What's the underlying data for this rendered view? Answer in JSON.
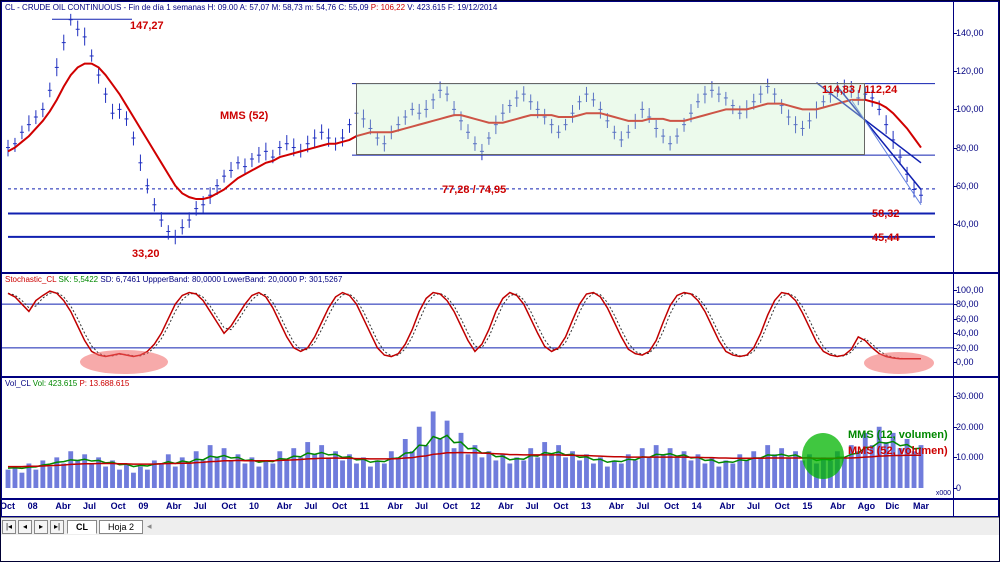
{
  "header": {
    "main": "CL - CRUDE OIL CONTINUOUS - Fin de día 1 semanas  H: 09.00  A: 57,07  M: 58,73  m: 54,76  C: 55,09",
    "p": "P: 106,22",
    "v": "V: 423.615",
    "f": "F: 19/12/2014"
  },
  "stoch_header": {
    "label": "Stochastic_CL",
    "sk": "SK: 5,5422",
    "sd": "SD: 6,7461  UppperBand: 80,0000  LowerBand: 20,0000  P: 301,5267"
  },
  "vol_header": {
    "label": "Vol_CL",
    "vol": "Vol: 423.615",
    "p": "P: 13.688.615"
  },
  "annotations": {
    "peak": "147,27",
    "mms52": "MMS (52)",
    "upper_range": "114,83 / 112,24",
    "lower_range": "77,28 / 74,95",
    "current": "58,32",
    "support": "45,44",
    "bottom": "33,20",
    "mms12v": "MMS (12, volumen)",
    "mms52v": "MMS (52, volumen)",
    "x000": "x000"
  },
  "price_axis": {
    "ticks": [
      140,
      120,
      100,
      80,
      60,
      40
    ],
    "labels": [
      "140,00",
      "120,00",
      "100,00",
      "80,00",
      "60,00",
      "40,00"
    ],
    "min": 20,
    "max": 150
  },
  "stoch_axis": {
    "ticks": [
      100,
      80,
      60,
      40,
      20,
      0
    ],
    "labels": [
      "100,00",
      "80,00",
      "60,00",
      "40,00",
      "20,00",
      "0,00"
    ],
    "min": -5,
    "max": 105
  },
  "vol_axis": {
    "ticks": [
      30000,
      20000,
      10000,
      0
    ],
    "labels": [
      "30.000",
      "20.000",
      "10.000",
      "0"
    ],
    "min": 0,
    "max": 32000
  },
  "xaxis": {
    "labels": [
      "Oct",
      "08",
      "Abr",
      "Jul",
      "Oct",
      "09",
      "Abr",
      "Jul",
      "Oct",
      "10",
      "Abr",
      "Jul",
      "Oct",
      "11",
      "Abr",
      "Jul",
      "Oct",
      "12",
      "Abr",
      "Jul",
      "Oct",
      "13",
      "Abr",
      "Jul",
      "Oct",
      "14",
      "Abr",
      "Jul",
      "Oct",
      "15",
      "Abr",
      "Ago",
      "Dic",
      "Mar"
    ]
  },
  "tabs": {
    "tab1": "CL",
    "tab2": "Hoja 2"
  },
  "colors": {
    "price_bars": "#2030c0",
    "mms_line": "#d00000",
    "axis_text": "#000080",
    "header_red": "#cc0000",
    "stoch_line": "#c00000",
    "stoch_dash": "#333333",
    "vol_bars": "#4050d0",
    "vol_mms12": "#008800",
    "vol_mms52": "#c00000",
    "hline_blue": "#1020b0",
    "rect_border": "#555555",
    "rect_fill": "#d8f0d0"
  },
  "price_series": [
    80,
    82,
    88,
    92,
    96,
    100,
    110,
    122,
    135,
    147,
    142,
    138,
    128,
    118,
    108,
    98,
    100,
    95,
    85,
    72,
    60,
    50,
    42,
    36,
    33,
    38,
    42,
    48,
    50,
    55,
    60,
    65,
    68,
    72,
    70,
    74,
    76,
    78,
    75,
    80,
    82,
    80,
    78,
    82,
    85,
    88,
    85,
    82,
    85,
    92,
    98,
    95,
    90,
    85,
    82,
    88,
    92,
    96,
    100,
    98,
    100,
    105,
    110,
    108,
    100,
    94,
    88,
    82,
    78,
    85,
    92,
    98,
    102,
    106,
    108,
    104,
    100,
    96,
    92,
    88,
    92,
    98,
    104,
    108,
    105,
    100,
    94,
    88,
    84,
    88,
    94,
    100,
    96,
    90,
    86,
    82,
    86,
    92,
    98,
    104,
    108,
    110,
    108,
    106,
    102,
    98,
    100,
    104,
    108,
    112,
    108,
    102,
    96,
    92,
    90,
    94,
    100,
    104,
    108,
    110,
    112,
    110,
    106,
    108,
    106,
    100,
    92,
    84,
    75,
    66,
    58,
    55
  ],
  "mms52_series": [
    78,
    80,
    83,
    86,
    90,
    94,
    99,
    105,
    112,
    118,
    122,
    124,
    124,
    122,
    118,
    113,
    108,
    102,
    96,
    90,
    84,
    78,
    72,
    66,
    60,
    56,
    54,
    53,
    53,
    54,
    56,
    58,
    61,
    64,
    66,
    68,
    70,
    72,
    73,
    75,
    76,
    77,
    78,
    79,
    80,
    81,
    82,
    82,
    83,
    84,
    86,
    87,
    88,
    88,
    88,
    88,
    89,
    90,
    91,
    92,
    93,
    94,
    95,
    96,
    97,
    97,
    96,
    95,
    94,
    93,
    93,
    93,
    94,
    95,
    96,
    97,
    97,
    97,
    97,
    96,
    96,
    96,
    97,
    98,
    98,
    98,
    97,
    96,
    95,
    94,
    94,
    94,
    95,
    95,
    95,
    94,
    94,
    94,
    95,
    96,
    97,
    98,
    99,
    100,
    100,
    100,
    100,
    101,
    102,
    103,
    103,
    103,
    102,
    101,
    100,
    100,
    100,
    101,
    102,
    103,
    104,
    105,
    105,
    105,
    104,
    103,
    101,
    98,
    94,
    90,
    85,
    80
  ],
  "stoch_series": [
    95,
    90,
    80,
    70,
    85,
    92,
    98,
    95,
    85,
    70,
    50,
    30,
    15,
    10,
    8,
    10,
    12,
    10,
    8,
    10,
    15,
    25,
    40,
    60,
    80,
    92,
    96,
    94,
    85,
    70,
    55,
    40,
    50,
    65,
    80,
    92,
    96,
    90,
    75,
    55,
    35,
    20,
    15,
    20,
    35,
    55,
    75,
    90,
    96,
    92,
    80,
    60,
    40,
    20,
    10,
    8,
    12,
    25,
    45,
    70,
    88,
    96,
    94,
    85,
    70,
    50,
    30,
    15,
    25,
    45,
    70,
    88,
    96,
    92,
    80,
    60,
    40,
    22,
    15,
    20,
    35,
    58,
    80,
    94,
    96,
    90,
    75,
    55,
    35,
    18,
    12,
    10,
    15,
    30,
    55,
    78,
    92,
    96,
    94,
    85,
    70,
    50,
    30,
    15,
    10,
    8,
    10,
    20,
    40,
    65,
    85,
    96,
    94,
    85,
    68,
    48,
    28,
    15,
    10,
    8,
    10,
    18,
    35,
    30,
    20,
    12,
    8,
    6,
    5,
    5,
    5,
    5
  ],
  "vol_series": [
    6,
    7,
    5,
    8,
    6,
    9,
    7,
    10,
    8,
    12,
    9,
    11,
    8,
    10,
    7,
    9,
    6,
    8,
    5,
    7,
    6,
    9,
    8,
    11,
    7,
    10,
    8,
    12,
    9,
    14,
    10,
    13,
    9,
    11,
    8,
    10,
    7,
    9,
    8,
    12,
    9,
    13,
    10,
    15,
    11,
    14,
    10,
    12,
    9,
    11,
    8,
    10,
    7,
    9,
    8,
    12,
    10,
    16,
    12,
    20,
    14,
    25,
    16,
    22,
    13,
    18,
    11,
    14,
    10,
    12,
    9,
    11,
    8,
    10,
    9,
    13,
    10,
    15,
    11,
    14,
    10,
    12,
    9,
    11,
    8,
    10,
    7,
    9,
    8,
    11,
    9,
    13,
    10,
    14,
    11,
    13,
    10,
    12,
    9,
    11,
    8,
    10,
    7,
    9,
    8,
    11,
    9,
    12,
    10,
    14,
    11,
    13,
    10,
    12,
    9,
    11,
    8,
    10,
    9,
    12,
    10,
    14,
    12,
    18,
    14,
    20,
    15,
    18,
    13,
    16,
    12,
    14
  ],
  "vol_mms12": [
    6.5,
    6.6,
    6.4,
    6.8,
    6.9,
    7.5,
    7.8,
    8.4,
    8.6,
    9.2,
    9.0,
    9.4,
    8.8,
    9.0,
    8.2,
    8.4,
    7.6,
    7.8,
    7.0,
    7.4,
    7.2,
    7.8,
    7.9,
    8.6,
    8.0,
    8.8,
    8.4,
    9.4,
    9.2,
    10.4,
    10.0,
    10.6,
    9.8,
    10.0,
    9.0,
    9.2,
    8.4,
    8.8,
    8.6,
    9.6,
    9.4,
    10.4,
    10.2,
    11.4,
    11.0,
    11.6,
    10.8,
    11.0,
    10.0,
    10.2,
    9.2,
    9.4,
    8.4,
    8.8,
    8.6,
    9.6,
    9.8,
    11.4,
    11.6,
    14.0,
    13.8,
    16.8,
    16.0,
    17.2,
    14.8,
    15.0,
    12.8,
    13.0,
    11.4,
    11.6,
    10.2,
    10.4,
    9.2,
    9.6,
    9.4,
    10.6,
    10.4,
    11.6,
    11.2,
    11.8,
    10.8,
    11.0,
    10.0,
    10.2,
    9.2,
    9.4,
    8.4,
    8.8,
    8.6,
    9.4,
    9.2,
    10.2,
    10.0,
    11.0,
    10.8,
    11.2,
    10.4,
    10.8,
    9.8,
    10.0,
    9.0,
    9.2,
    8.2,
    8.6,
    8.4,
    9.2,
    9.0,
    9.8,
    9.8,
    10.8,
    10.6,
    11.0,
    10.4,
    10.8,
    9.8,
    10.0,
    9.0,
    9.4,
    9.2,
    10.0,
    10.0,
    11.0,
    11.4,
    13.2,
    13.4,
    15.0,
    14.6,
    15.2,
    13.8,
    14.2,
    12.8,
    13.0
  ],
  "vol_mms52": [
    7.0,
    7.0,
    7.0,
    7.1,
    7.1,
    7.2,
    7.3,
    7.4,
    7.5,
    7.7,
    7.8,
    7.9,
    7.9,
    8.0,
    8.0,
    8.0,
    7.9,
    7.9,
    7.8,
    7.8,
    7.8,
    7.8,
    7.9,
    8.0,
    8.0,
    8.1,
    8.1,
    8.3,
    8.4,
    8.6,
    8.7,
    8.9,
    8.9,
    9.0,
    8.9,
    8.9,
    8.9,
    8.9,
    8.9,
    9.0,
    9.1,
    9.2,
    9.3,
    9.5,
    9.6,
    9.7,
    9.7,
    9.8,
    9.7,
    9.7,
    9.6,
    9.6,
    9.5,
    9.5,
    9.5,
    9.5,
    9.6,
    9.8,
    9.9,
    10.3,
    10.5,
    11.0,
    11.2,
    11.5,
    11.5,
    11.6,
    11.5,
    11.5,
    11.4,
    11.3,
    11.2,
    11.1,
    10.9,
    10.9,
    10.8,
    10.8,
    10.8,
    10.8,
    10.8,
    10.8,
    10.7,
    10.7,
    10.6,
    10.6,
    10.5,
    10.4,
    10.3,
    10.2,
    10.2,
    10.1,
    10.1,
    10.1,
    10.1,
    10.1,
    10.1,
    10.1,
    10.1,
    10.1,
    10.0,
    10.0,
    9.9,
    9.9,
    9.8,
    9.8,
    9.7,
    9.7,
    9.7,
    9.7,
    9.7,
    9.8,
    9.8,
    9.8,
    9.8,
    9.8,
    9.8,
    9.8,
    9.7,
    9.7,
    9.7,
    9.7,
    9.8,
    9.8,
    9.9,
    10.1,
    10.2,
    10.4,
    10.5,
    10.6,
    10.6,
    10.7,
    10.7,
    10.7
  ]
}
